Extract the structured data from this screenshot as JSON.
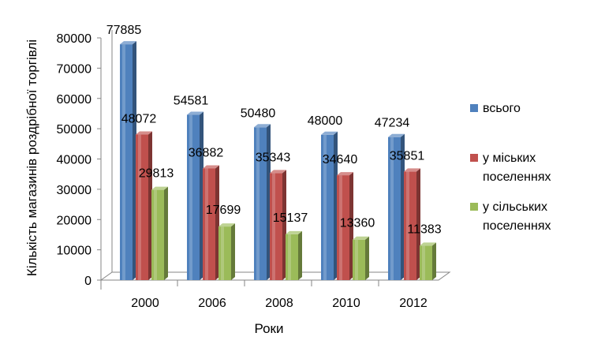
{
  "chart_data": {
    "type": "bar",
    "categories": [
      "2000",
      "2006",
      "2008",
      "2010",
      "2012"
    ],
    "series": [
      {
        "name": "всього",
        "values": [
          77885,
          54581,
          50480,
          48000,
          47234
        ],
        "color": "#4F81BD"
      },
      {
        "name": "у міських поселеннях",
        "values": [
          48072,
          36882,
          35343,
          34640,
          35851
        ],
        "color": "#C0504D"
      },
      {
        "name": "у сільських поселеннях",
        "values": [
          29813,
          17699,
          15137,
          13360,
          11383
        ],
        "color": "#9BBB59"
      }
    ],
    "legend_lines": [
      [
        "всього"
      ],
      [
        "у міських",
        "поселеннях"
      ],
      [
        "у сільських",
        "поселеннях"
      ]
    ],
    "xlabel": "Роки",
    "ylabel": "Кількість магазинів роздрібної торгівлі",
    "ylim": [
      0,
      80000
    ],
    "yticks": [
      0,
      10000,
      20000,
      30000,
      40000,
      50000,
      60000,
      70000,
      80000
    ],
    "style": "3d-clustered-bar",
    "legend": "right",
    "grid": false
  }
}
